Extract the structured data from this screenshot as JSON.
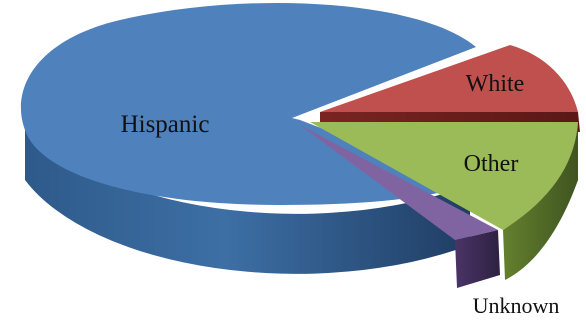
{
  "chart_data": {
    "type": "pie",
    "style": "3d-exploded",
    "title": "",
    "slices": [
      {
        "label": "Hispanic",
        "value": 72,
        "color": "#4f81bd",
        "exploded": false
      },
      {
        "label": "White",
        "value": 10,
        "color": "#c0504d",
        "exploded": true
      },
      {
        "label": "Other",
        "value": 15,
        "color": "#9bbb59",
        "exploded": true
      },
      {
        "label": "Unknown",
        "value": 3,
        "color": "#8064a2",
        "exploded": true
      }
    ],
    "labels_on_chart": true,
    "legend": "none"
  }
}
